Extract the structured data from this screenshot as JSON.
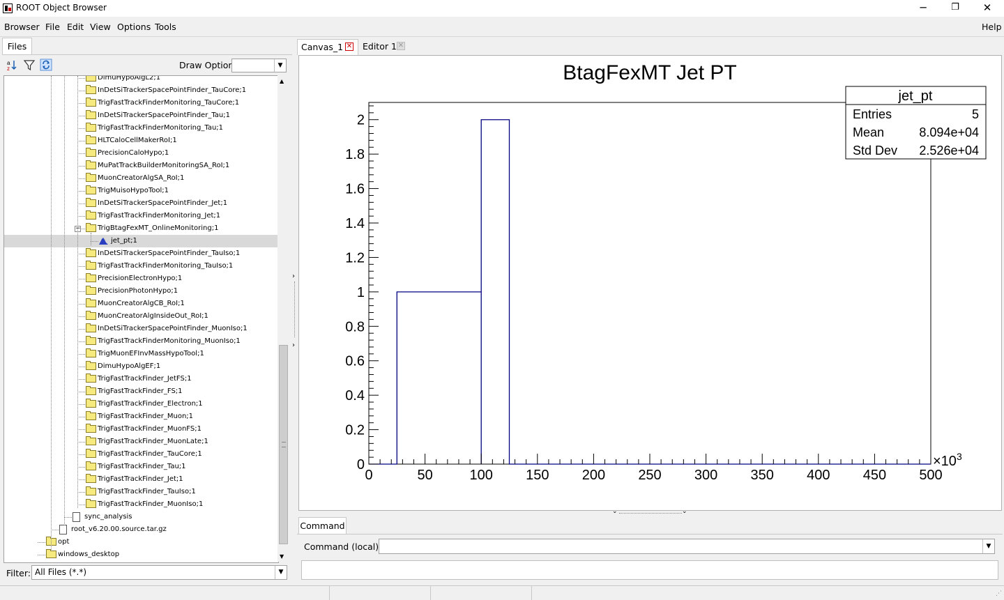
{
  "window": {
    "title": "ROOT Object Browser",
    "minimize": "─",
    "restore": "❐",
    "close": "✕"
  },
  "menu": {
    "items": [
      "Browser",
      "File",
      "Edit",
      "View",
      "Options",
      "Tools"
    ],
    "help": "Help"
  },
  "left": {
    "tab": "Files",
    "draw_option_label": "Draw Option:",
    "draw_option_value": "",
    "filter_label": "Filter:",
    "filter_value": "All Files (*.*)",
    "tree": [
      {
        "label": "DimuHypoAlgL2;1",
        "type": "folder",
        "indent": 2
      },
      {
        "label": "InDetSiTrackerSpacePointFinder_TauCore;1",
        "type": "folder",
        "indent": 2
      },
      {
        "label": "TrigFastTrackFinderMonitoring_TauCore;1",
        "type": "folder",
        "indent": 2
      },
      {
        "label": "InDetSiTrackerSpacePointFinder_Tau;1",
        "type": "folder",
        "indent": 2
      },
      {
        "label": "TrigFastTrackFinderMonitoring_Tau;1",
        "type": "folder",
        "indent": 2
      },
      {
        "label": "HLTCaloCellMakerRoI;1",
        "type": "folder",
        "indent": 2
      },
      {
        "label": "PrecisionCaloHypo;1",
        "type": "folder",
        "indent": 2
      },
      {
        "label": "MuPatTrackBuilderMonitoringSA_RoI;1",
        "type": "folder",
        "indent": 2
      },
      {
        "label": "MuonCreatorAlgSA_RoI;1",
        "type": "folder",
        "indent": 2
      },
      {
        "label": "TrigMuisoHypoTool;1",
        "type": "folder",
        "indent": 2
      },
      {
        "label": "InDetSiTrackerSpacePointFinder_Jet;1",
        "type": "folder",
        "indent": 2
      },
      {
        "label": "TrigFastTrackFinderMonitoring_Jet;1",
        "type": "folder",
        "indent": 2
      },
      {
        "label": "TrigBtagFexMT_OnlineMonitoring;1",
        "type": "folder-open",
        "indent": 2,
        "expanded": true
      },
      {
        "label": "jet_pt;1",
        "type": "histogram",
        "indent": 3,
        "selected": true
      },
      {
        "label": "InDetSiTrackerSpacePointFinder_TauIso;1",
        "type": "folder",
        "indent": 2
      },
      {
        "label": "TrigFastTrackFinderMonitoring_TauIso;1",
        "type": "folder",
        "indent": 2
      },
      {
        "label": "PrecisionElectronHypo;1",
        "type": "folder",
        "indent": 2
      },
      {
        "label": "PrecisionPhotonHypo;1",
        "type": "folder",
        "indent": 2
      },
      {
        "label": "MuonCreatorAlgCB_RoI;1",
        "type": "folder",
        "indent": 2
      },
      {
        "label": "MuonCreatorAlgInsideOut_RoI;1",
        "type": "folder",
        "indent": 2
      },
      {
        "label": "InDetSiTrackerSpacePointFinder_MuonIso;1",
        "type": "folder",
        "indent": 2
      },
      {
        "label": "TrigFastTrackFinderMonitoring_MuonIso;1",
        "type": "folder",
        "indent": 2
      },
      {
        "label": "TrigMuonEFInvMassHypoTool;1",
        "type": "folder",
        "indent": 2
      },
      {
        "label": "DimuHypoAlgEF;1",
        "type": "folder",
        "indent": 2
      },
      {
        "label": "TrigFastTrackFinder_JetFS;1",
        "type": "folder",
        "indent": 2
      },
      {
        "label": "TrigFastTrackFinder_FS;1",
        "type": "folder",
        "indent": 2
      },
      {
        "label": "TrigFastTrackFinder_Electron;1",
        "type": "folder",
        "indent": 2
      },
      {
        "label": "TrigFastTrackFinder_Muon;1",
        "type": "folder",
        "indent": 2
      },
      {
        "label": "TrigFastTrackFinder_MuonFS;1",
        "type": "folder",
        "indent": 2
      },
      {
        "label": "TrigFastTrackFinder_MuonLate;1",
        "type": "folder",
        "indent": 2
      },
      {
        "label": "TrigFastTrackFinder_TauCore;1",
        "type": "folder",
        "indent": 2
      },
      {
        "label": "TrigFastTrackFinder_Tau;1",
        "type": "folder",
        "indent": 2
      },
      {
        "label": "TrigFastTrackFinder_Jet;1",
        "type": "folder",
        "indent": 2
      },
      {
        "label": "TrigFastTrackFinder_TauIso;1",
        "type": "folder",
        "indent": 2
      },
      {
        "label": "TrigFastTrackFinder_MuonIso;1",
        "type": "folder",
        "indent": 2
      },
      {
        "label": "sync_analysis",
        "type": "file",
        "indent": 1
      },
      {
        "label": "root_v6.20.00.source.tar.gz",
        "type": "file",
        "indent": 0
      },
      {
        "label": "opt",
        "type": "folder",
        "indent": -1
      },
      {
        "label": "windows_desktop",
        "type": "folder",
        "indent": -1
      }
    ]
  },
  "tabs": [
    {
      "label": "Canvas_1",
      "active": true
    },
    {
      "label": "Editor 1",
      "active": false
    }
  ],
  "command": {
    "tab": "Command",
    "label": "Command (local):",
    "value": ""
  },
  "colors": {
    "histogram_line": "#000080",
    "selection": "#d9d9d9"
  },
  "chart_data": {
    "type": "histogram",
    "title": "BtagFexMT Jet PT",
    "xlim": [
      0,
      500000
    ],
    "x_tick_labels": [
      "0",
      "50",
      "100",
      "150",
      "200",
      "250",
      "300",
      "350",
      "400",
      "450",
      "500"
    ],
    "x_exponent_label": "×10",
    "x_exponent_power": "3",
    "ylim": [
      0,
      2.1
    ],
    "y_tick_labels": [
      "0",
      "0.2",
      "0.4",
      "0.6",
      "0.8",
      "1",
      "1.2",
      "1.4",
      "1.6",
      "1.8",
      "2"
    ],
    "y_ticks": [
      0,
      0.2,
      0.4,
      0.6,
      0.8,
      1,
      1.2,
      1.4,
      1.6,
      1.8,
      2
    ],
    "bins": [
      {
        "low": 25000,
        "high": 100000,
        "value": 1
      },
      {
        "low": 100000,
        "high": 125000,
        "value": 2
      }
    ],
    "stats": {
      "name": "jet_pt",
      "rows": [
        {
          "label": "Entries",
          "value": "5"
        },
        {
          "label": "Mean",
          "value": "8.094e+04"
        },
        {
          "label": "Std Dev",
          "value": "2.526e+04"
        }
      ]
    }
  }
}
